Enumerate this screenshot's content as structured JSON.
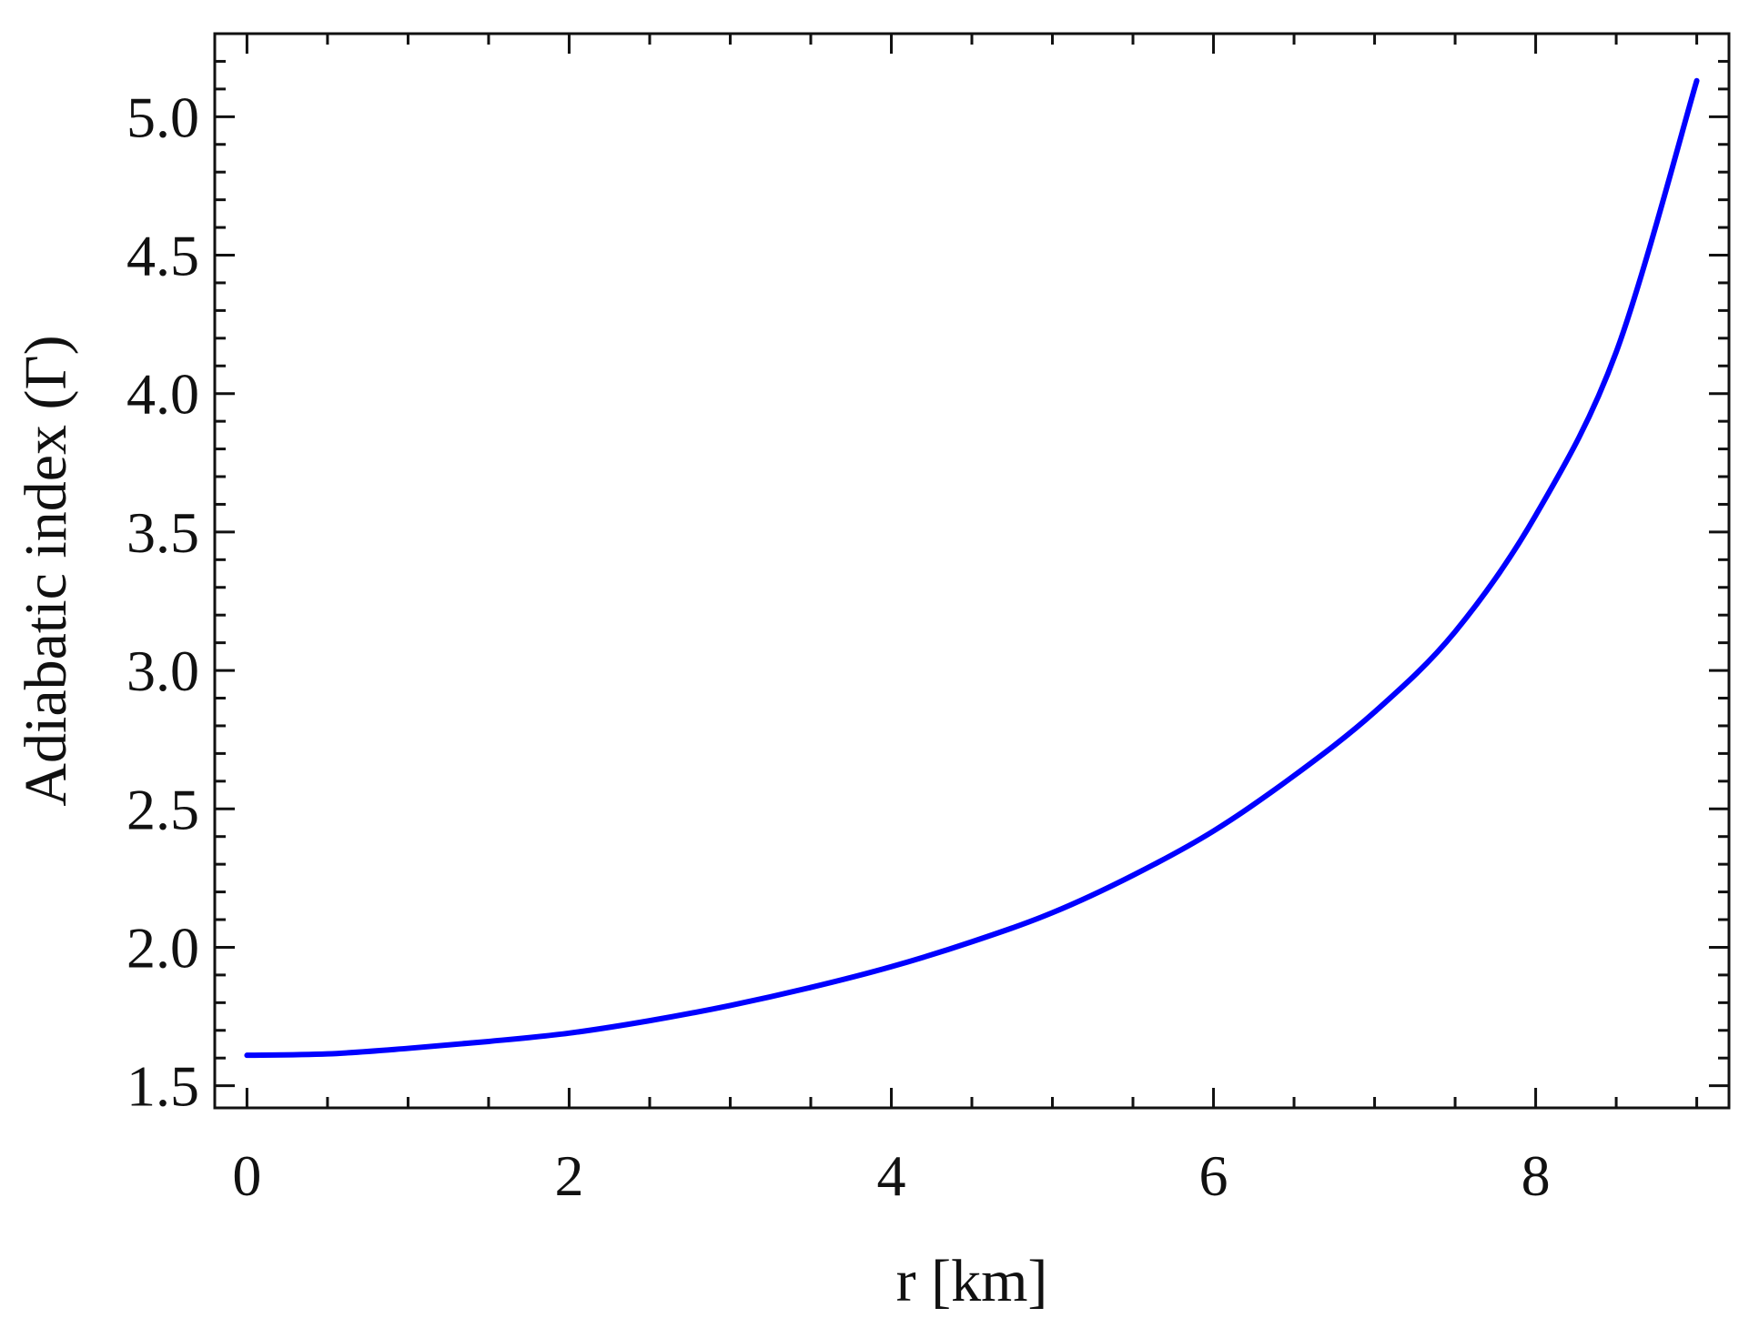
{
  "chart_data": {
    "type": "line",
    "xlabel": "r [km]",
    "ylabel": "Adiabatic index (Γ)",
    "xlim": [
      -0.2,
      9.2
    ],
    "ylim": [
      1.42,
      5.3
    ],
    "x_ticks": [
      0,
      2,
      4,
      6,
      8
    ],
    "x_tick_labels": [
      "0",
      "2",
      "4",
      "6",
      "8"
    ],
    "y_ticks": [
      1.5,
      2.0,
      2.5,
      3.0,
      3.5,
      4.0,
      4.5,
      5.0
    ],
    "y_tick_labels": [
      "1.5",
      "2.0",
      "2.5",
      "3.0",
      "3.5",
      "4.0",
      "4.5",
      "5.0"
    ],
    "grid": false,
    "legend": "none",
    "series": [
      {
        "color": "#0000ff",
        "x": [
          0,
          0.5,
          1,
          1.5,
          2,
          2.5,
          3,
          3.5,
          4,
          4.5,
          5,
          5.5,
          6,
          6.5,
          7,
          7.5,
          8,
          8.5,
          9
        ],
        "y": [
          1.61,
          1.615,
          1.635,
          1.66,
          1.69,
          1.735,
          1.79,
          1.855,
          1.93,
          2.02,
          2.125,
          2.26,
          2.42,
          2.62,
          2.85,
          3.14,
          3.56,
          4.15,
          5.13
        ]
      }
    ]
  }
}
